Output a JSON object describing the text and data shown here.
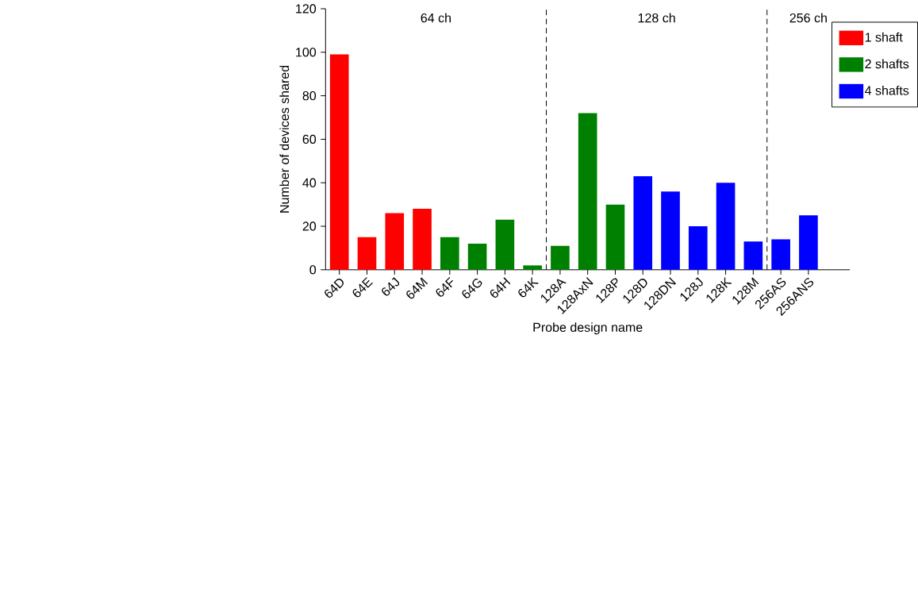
{
  "chart_data": {
    "type": "bar",
    "xlabel": "Probe design name",
    "ylabel": "Number of devices shared",
    "categories": [
      "64D",
      "64E",
      "64J",
      "64M",
      "64F",
      "64G",
      "64H",
      "64K",
      "128A",
      "128AxN",
      "128P",
      "128D",
      "128DN",
      "128J",
      "128K",
      "128M",
      "256AS",
      "256ANS"
    ],
    "series": [
      {
        "name": "1 shaft",
        "color": "#ff0000",
        "values": [
          99,
          15,
          26,
          28,
          null,
          null,
          null,
          null,
          null,
          null,
          null,
          null,
          null,
          null,
          null,
          null,
          null,
          null
        ]
      },
      {
        "name": "2 shafts",
        "color": "#008000",
        "values": [
          null,
          null,
          null,
          null,
          15,
          12,
          23,
          2,
          11,
          72,
          30,
          null,
          null,
          null,
          null,
          null,
          null,
          null
        ]
      },
      {
        "name": "4 shafts",
        "color": "#0000ff",
        "values": [
          null,
          null,
          null,
          null,
          null,
          null,
          null,
          null,
          null,
          null,
          null,
          43,
          36,
          20,
          40,
          13,
          14,
          25
        ]
      }
    ],
    "ylim": [
      0,
      120
    ],
    "yticks": [
      0,
      20,
      40,
      60,
      80,
      100,
      120
    ],
    "annotations": [
      "64 ch",
      "128 ch",
      "256 ch"
    ],
    "legend": "top right",
    "grid": false
  }
}
